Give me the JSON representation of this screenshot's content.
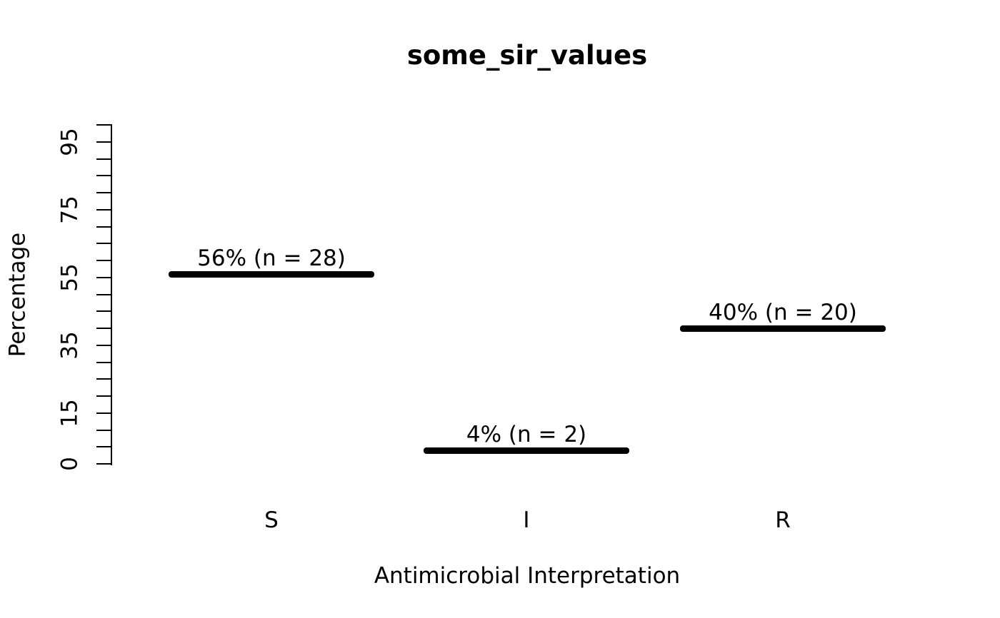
{
  "colors": {
    "foreground": "#000000",
    "background": "#ffffff"
  },
  "chart_data": {
    "type": "bar",
    "title": "some_sir_values",
    "xlabel": "Antimicrobial Interpretation",
    "ylabel": "Percentage",
    "categories": [
      "S",
      "I",
      "R"
    ],
    "values": [
      56,
      4,
      40
    ],
    "counts": [
      28,
      2,
      20
    ],
    "bar_labels": [
      "56% (n = 28)",
      "4% (n = 2)",
      "40% (n = 20)"
    ],
    "ylim": [
      0,
      100
    ],
    "ytick_step": 5,
    "ytick_labeled_values": [
      0,
      15,
      35,
      55,
      75,
      95
    ],
    "grid": false,
    "legend": "none",
    "bar_color": "#000000"
  }
}
